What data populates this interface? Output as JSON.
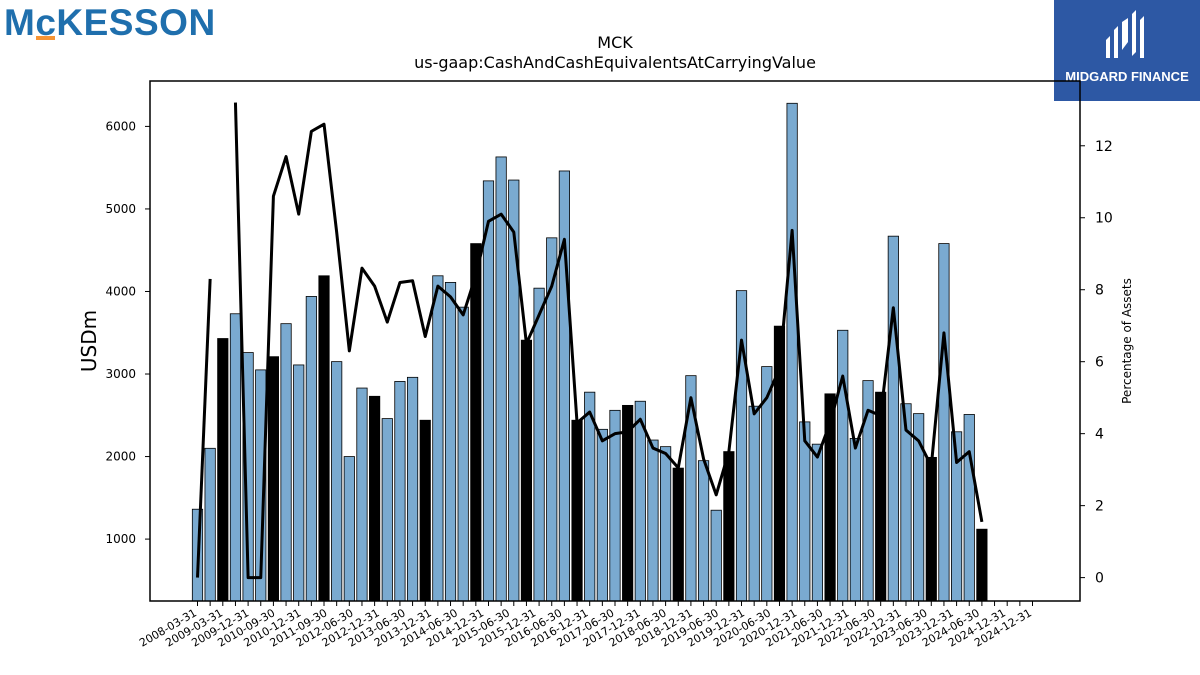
{
  "header": {
    "company_logo_text": "McKESSON",
    "partner_logo_text": "MIDGARD FINANCE"
  },
  "colors": {
    "bar_light": "#7aaad0",
    "bar_dark": "#000000",
    "line": "#000000",
    "mck_blue": "#1f6fad",
    "mck_orange": "#f79433",
    "midgard_blue": "#2d58a4"
  },
  "chart_data": {
    "type": "bar",
    "title": "MCK",
    "subtitle": "us-gaap:CashAndCashEquivalentsAtCarryingValue",
    "ylabel": "USDm",
    "y2label": "Percentage of Assets",
    "ylim": [
      250,
      6550
    ],
    "y2lim": [
      -0.65,
      13.8
    ],
    "yticks": [
      1000,
      2000,
      3000,
      4000,
      5000,
      6000
    ],
    "y2ticks": [
      0,
      2,
      4,
      6,
      8,
      10,
      12
    ],
    "categories": [
      "2008-03-31",
      "2008-06-30",
      "2008-09-30",
      "2009-03-31",
      "2009-06-30",
      "2009-09-30",
      "2009-12-31",
      "2010-03-31",
      "2010-06-30",
      "2010-09-30",
      "2010-12-31",
      "2011-03-31",
      "2011-06-30",
      "2011-09-30",
      "2011-12-31",
      "2012-03-31",
      "2012-06-30",
      "2012-09-30",
      "2012-12-31",
      "2013-03-31",
      "2013-06-30",
      "2013-09-30",
      "2013-12-31",
      "2014-03-31",
      "2014-06-30",
      "2014-09-30",
      "2014-12-31",
      "2015-03-31",
      "2015-06-30",
      "2015-09-30",
      "2015-12-31",
      "2016-03-31",
      "2016-06-30",
      "2016-09-30",
      "2016-12-31",
      "2017-03-31",
      "2017-06-30",
      "2017-09-30",
      "2017-12-31",
      "2018-03-31",
      "2018-06-30",
      "2018-09-30",
      "2018-12-31",
      "2019-03-31",
      "2019-06-30",
      "2019-09-30",
      "2019-12-31",
      "2020-03-31",
      "2020-06-30",
      "2020-09-30",
      "2020-12-31",
      "2021-03-31",
      "2021-06-30",
      "2021-09-30",
      "2021-12-31",
      "2022-03-31",
      "2022-06-30",
      "2022-09-30",
      "2022-12-31",
      "2023-03-31",
      "2023-06-30",
      "2023-09-30",
      "2023-12-31",
      "2024-03-31",
      "2024-06-30",
      "2024-09-30",
      "2024-12-31"
    ],
    "tick_labels": [
      "2008-03-31",
      "2009-03-31",
      "2009-12-31",
      "2010-09-30",
      "2010-12-31",
      "2011-09-30",
      "2012-06-30",
      "2012-12-31",
      "2013-06-30",
      "2013-12-31",
      "2014-06-30",
      "2014-12-31",
      "2015-06-30",
      "2015-12-31",
      "2016-06-30",
      "2016-12-31",
      "2017-06-30",
      "2017-12-31",
      "2018-06-30",
      "2018-12-31",
      "2019-06-30",
      "2019-12-31",
      "2020-06-30",
      "2020-12-31",
      "2021-06-30",
      "2021-12-31",
      "2022-06-30",
      "2022-12-31",
      "2023-06-30",
      "2023-12-31",
      "2024-06-30",
      "2024-12-31",
      "2024-12-31"
    ],
    "series": [
      {
        "values": [
          1362,
          2100,
          3430,
          3730,
          3260,
          3050,
          3210,
          3610,
          3110,
          3940,
          4190,
          3150,
          2000,
          2830,
          2730,
          2460,
          2910,
          2960,
          2440,
          4190,
          4110,
          3810,
          4580,
          5340,
          5630,
          5350,
          3410,
          4040,
          4650,
          5460,
          2440,
          2780,
          2330,
          2560,
          2620,
          2670,
          2200,
          2120,
          1860,
          2980,
          1950,
          1350,
          2060,
          4010,
          2610,
          3090,
          3580,
          6280,
          2420,
          2150,
          2760,
          3530,
          2220,
          2920,
          2780,
          4670,
          2640,
          2520,
          1990,
          4580,
          2300,
          2510,
          1120,
          null,
          null,
          null,
          null
        ],
        "highlight": [
          false,
          false,
          true,
          false,
          false,
          false,
          true,
          false,
          false,
          false,
          true,
          false,
          false,
          false,
          true,
          false,
          false,
          false,
          true,
          false,
          false,
          false,
          true,
          false,
          false,
          false,
          true,
          false,
          false,
          false,
          true,
          false,
          false,
          false,
          true,
          false,
          false,
          false,
          true,
          false,
          false,
          false,
          true,
          false,
          false,
          false,
          true,
          false,
          false,
          false,
          true,
          false,
          false,
          false,
          true,
          false,
          false,
          false,
          true,
          false,
          false,
          false,
          true,
          false,
          false,
          false,
          false
        ]
      },
      {
        "axis": "right",
        "type": "line",
        "values": [
          0,
          8.3,
          null,
          13.2,
          0,
          0,
          10.6,
          11.7,
          10.1,
          12.4,
          12.6,
          9.6,
          6.3,
          8.6,
          8.1,
          7.1,
          8.2,
          8.25,
          6.7,
          8.1,
          7.8,
          7.3,
          8.4,
          9.9,
          10.1,
          9.6,
          6.5,
          7.3,
          8.1,
          9.4,
          4.3,
          4.6,
          3.8,
          4.0,
          4.05,
          4.4,
          3.6,
          3.45,
          3.05,
          5.0,
          3.3,
          2.3,
          3.5,
          6.6,
          4.55,
          5.0,
          5.8,
          9.65,
          3.8,
          3.35,
          4.3,
          5.6,
          3.6,
          4.65,
          4.5,
          7.5,
          4.1,
          3.8,
          3.1,
          6.8,
          3.2,
          3.5,
          1.55,
          null,
          null,
          null,
          null
        ]
      }
    ]
  }
}
